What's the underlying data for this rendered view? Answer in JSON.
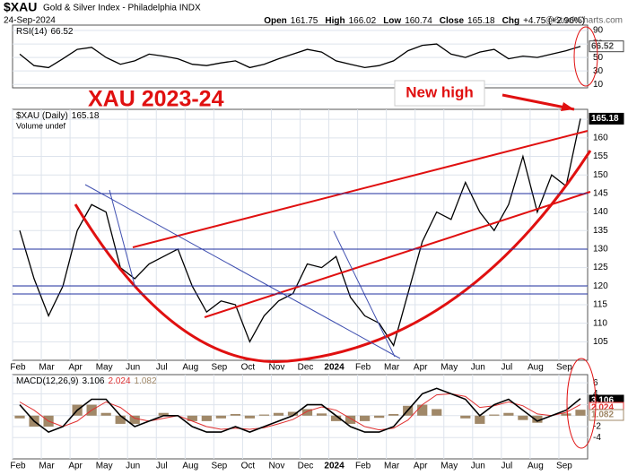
{
  "header": {
    "symbol": "$XAU",
    "name": "Gold & Silver Index - Philadelphia INDX",
    "date": "24-Sep-2024",
    "quote": [
      {
        "label": "Open",
        "value": 161.75
      },
      {
        "label": "High",
        "value": 166.02
      },
      {
        "label": "Low",
        "value": 160.74
      },
      {
        "label": "Close",
        "value": 165.18
      },
      {
        "label": "Chg",
        "value": "+4.75 (+2.96%)"
      }
    ],
    "source": "@StockCharts.com"
  },
  "chart_data": [
    {
      "type": "line",
      "title": "RSI(14)",
      "color": "#000000",
      "values": [
        55,
        38,
        35,
        48,
        62,
        65,
        50,
        40,
        45,
        55,
        52,
        48,
        40,
        38,
        42,
        45,
        35,
        40,
        48,
        55,
        62,
        58,
        45,
        40,
        35,
        38,
        45,
        60,
        68,
        70,
        55,
        50,
        58,
        62,
        48,
        52,
        50,
        55,
        60,
        66.52
      ],
      "ylim": [
        5,
        98
      ],
      "yticks": [
        10,
        30,
        50,
        70,
        90
      ]
    },
    {
      "type": "line",
      "title": "$XAU (Daily)",
      "subtitle": "Volume undef",
      "color": "#000000",
      "annotations": [
        "XAU 2023-24",
        "New high"
      ],
      "categories": [
        "Feb",
        null,
        "Mar",
        null,
        "Apr",
        null,
        "May",
        null,
        "Jun",
        null,
        "Jul",
        null,
        "Aug",
        null,
        "Sep",
        null,
        "Oct",
        null,
        "Nov",
        null,
        "Dec",
        null,
        "2024",
        null,
        "Feb",
        null,
        "Mar",
        null,
        "Apr",
        null,
        "May",
        null,
        "Jun",
        null,
        "Jul",
        null,
        "Aug",
        null,
        "Sep",
        null
      ],
      "values": [
        135,
        122,
        112,
        120,
        135,
        142,
        140,
        125,
        122,
        126,
        128,
        130,
        120,
        113,
        116,
        115,
        105,
        112,
        116,
        118,
        126,
        125,
        128,
        117,
        112,
        110,
        104,
        118,
        132,
        140,
        138,
        148,
        140,
        135,
        142,
        155,
        140,
        150,
        147,
        165.18
      ],
      "ylim": [
        100,
        167.7
      ],
      "yticks": [
        105,
        110,
        115,
        120,
        125,
        130,
        135,
        140,
        145,
        150,
        155,
        160,
        165
      ]
    },
    {
      "type": "macd",
      "title": "MACD(12,26,9)",
      "categories": [
        "Feb",
        null,
        "Mar",
        null,
        "Apr",
        null,
        "May",
        null,
        "Jun",
        null,
        "Jul",
        null,
        "Aug",
        null,
        "Sep",
        null,
        "Oct",
        null,
        "Nov",
        null,
        "Dec",
        null,
        "2024",
        null,
        "Feb",
        null,
        "Mar",
        null,
        "Apr",
        null,
        "May",
        null,
        "Jun",
        null,
        "Jul",
        null,
        "Aug",
        null,
        "Sep",
        null
      ],
      "series": [
        {
          "color": "#000000",
          "values": [
            2,
            -1,
            -3,
            -2,
            1,
            3,
            3,
            0,
            -2,
            -1,
            0,
            0,
            -2,
            -3,
            -3,
            -2,
            -3,
            -2,
            -1,
            0,
            2,
            2,
            0,
            -2,
            -3,
            -3,
            -2,
            1,
            4,
            5,
            4,
            3,
            0,
            2,
            3,
            1,
            -1,
            0,
            1,
            3.106
          ]
        },
        {
          "color": "#e03030",
          "values": [
            2.5,
            1,
            -1,
            -2,
            -1,
            1,
            2.5,
            1.5,
            -0.5,
            -1,
            -0.5,
            0,
            -1,
            -2,
            -2.5,
            -2.3,
            -2.5,
            -2.2,
            -1.5,
            -0.7,
            0.8,
            1.6,
            1,
            -0.5,
            -2,
            -2.6,
            -2.3,
            -0.8,
            2,
            3.8,
            4,
            3.5,
            1.5,
            1.8,
            2.5,
            1.8,
            0.3,
            0,
            0.6,
            2.024
          ]
        },
        {
          "color": "#a08868",
          "values": [
            -0.5,
            -2,
            -2,
            0,
            2,
            2,
            0.5,
            -1.5,
            -1.5,
            0,
            0.5,
            0,
            -1,
            -1,
            -0.5,
            0.3,
            -0.5,
            0.2,
            0.5,
            0.7,
            1.2,
            0.4,
            -1,
            -1.5,
            -1,
            -0.4,
            0.3,
            1.8,
            2,
            1.2,
            0,
            -0.5,
            -1.5,
            0.2,
            0.5,
            -0.8,
            -1.3,
            0,
            0.4,
            1.082
          ]
        }
      ],
      "ylim": [
        -7.9,
        7.5
      ],
      "yticks": [
        -4,
        -2,
        0,
        2,
        4,
        6
      ]
    }
  ]
}
